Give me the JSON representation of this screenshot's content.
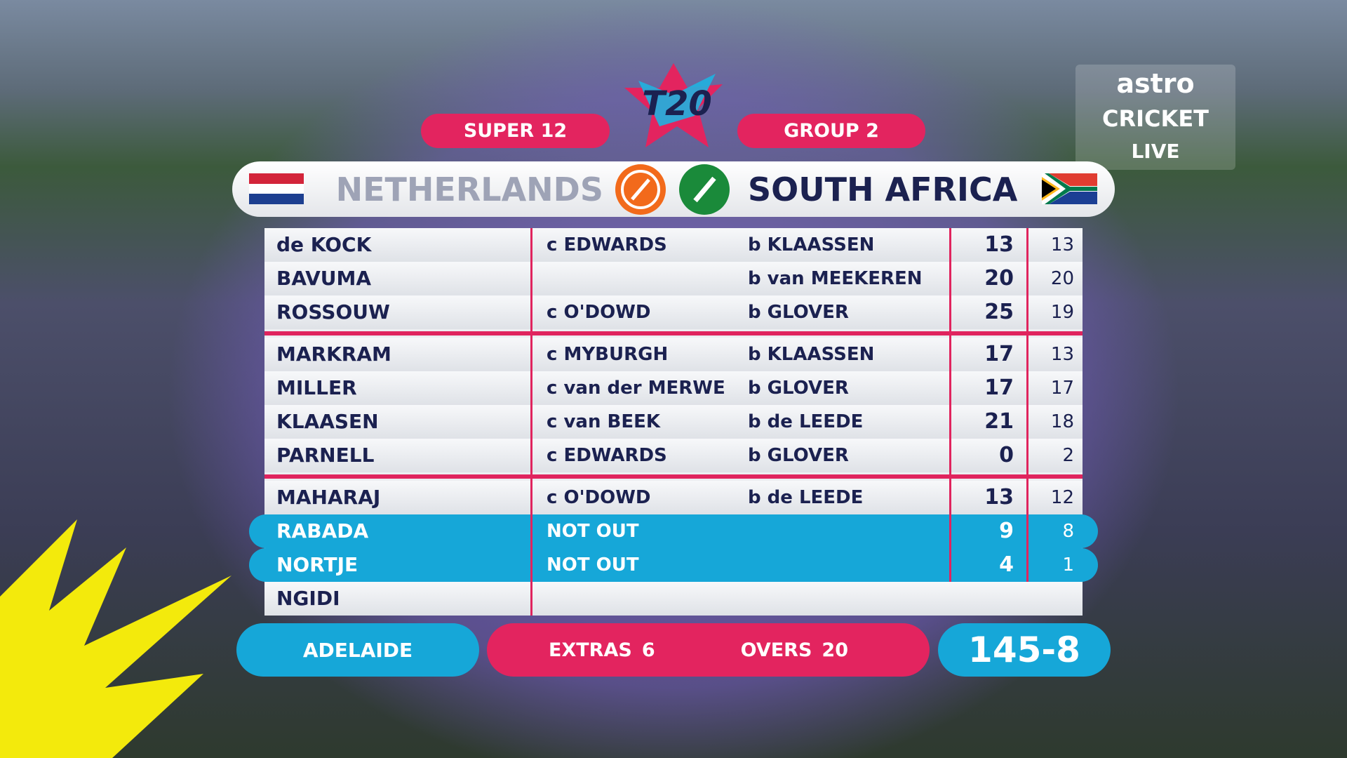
{
  "header": {
    "stage": "SUPER 12",
    "group": "GROUP 2",
    "logo": "T20"
  },
  "broadcaster": {
    "name": "astro",
    "channel": "CRICKET",
    "status": "LIVE"
  },
  "teams": {
    "bowling": "NETHERLANDS",
    "batting": "SOUTH AFRICA"
  },
  "batting": [
    [
      {
        "name": "de KOCK",
        "caught": "c EDWARDS",
        "bowled": "b KLAASSEN",
        "runs": "13",
        "balls": "13"
      },
      {
        "name": "BAVUMA",
        "bowled": "b van MEEKEREN",
        "runs": "20",
        "balls": "20"
      },
      {
        "name": "ROSSOUW",
        "caught": "c O'DOWD",
        "bowled": "b GLOVER",
        "runs": "25",
        "balls": "19"
      }
    ],
    [
      {
        "name": "MARKRAM",
        "caught": "c MYBURGH",
        "bowled": "b KLAASSEN",
        "runs": "17",
        "balls": "13"
      },
      {
        "name": "MILLER",
        "caught": "c van der MERWE",
        "bowled": "b GLOVER",
        "runs": "17",
        "balls": "17"
      },
      {
        "name": "KLAASEN",
        "caught": "c van BEEK",
        "bowled": "b de LEEDE",
        "runs": "21",
        "balls": "18"
      },
      {
        "name": "PARNELL",
        "caught": "c EDWARDS",
        "bowled": "b GLOVER",
        "runs": "0",
        "balls": "2"
      }
    ],
    [
      {
        "name": "MAHARAJ",
        "caught": "c O'DOWD",
        "bowled": "b de LEEDE",
        "runs": "13",
        "balls": "12"
      },
      {
        "name": "RABADA",
        "caught": "NOT OUT",
        "runs": "9",
        "balls": "8",
        "highlight": true
      },
      {
        "name": "NORTJE",
        "caught": "NOT OUT",
        "runs": "4",
        "balls": "1",
        "highlight": true
      },
      {
        "name": "NGIDI"
      }
    ]
  ],
  "footer": {
    "venue": "ADELAIDE",
    "extras_label": "EXTRAS",
    "extras": "6",
    "overs_label": "OVERS",
    "overs": "20",
    "total": "145-8"
  }
}
